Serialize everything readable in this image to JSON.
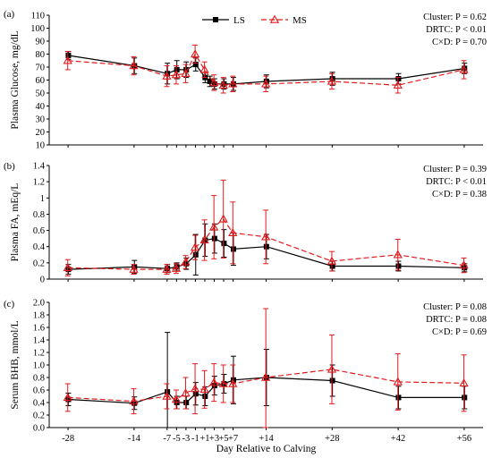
{
  "chart_data": {
    "type": "line",
    "x": [
      -28,
      -14,
      -7,
      -5,
      -3,
      -1,
      1,
      3,
      5,
      7,
      14,
      28,
      42,
      56
    ],
    "xtick_positions": [
      -28,
      -14,
      -7,
      -5,
      -3,
      -1,
      1,
      3,
      5,
      7,
      14,
      28,
      42,
      56
    ],
    "xlim": [
      -32,
      60
    ],
    "xlabel": "Day Relative to Calving",
    "colors": {
      "LS": "#000000",
      "MS": "#e31a1c"
    },
    "legend": [
      {
        "name": "LS",
        "marker": "square",
        "line": "solid"
      },
      {
        "name": "MS",
        "marker": "triangle",
        "line": "dashed"
      }
    ],
    "panels": [
      {
        "label": "(a)",
        "ylabel": "Plasma Glucose, mg/dL",
        "ylim": [
          10,
          110
        ],
        "yticks": [
          10,
          20,
          30,
          40,
          50,
          60,
          70,
          80,
          90,
          100,
          110
        ],
        "ytick_labels": [
          "10",
          "20",
          "30",
          "40",
          "50",
          "60",
          "70",
          "80",
          "90",
          "100",
          "110"
        ],
        "stats": [
          "Cluster: P = 0.62",
          "DRTC: P < 0.01",
          "C×D: P = 0.70"
        ],
        "series": [
          {
            "name": "LS",
            "x": [
              -28,
              -14,
              -7,
              -5,
              -3,
              -1,
              1,
              2,
              3,
              5,
              7,
              14,
              28,
              42,
              56
            ],
            "values": [
              79,
              71,
              65,
              68,
              68,
              72,
              62,
              59,
              57,
              57,
              57,
              59,
              61,
              61,
              69
            ],
            "errors": [
              3,
              6,
              8,
              7,
              6,
              5,
              4,
              4,
              4,
              4,
              5,
              5,
              5,
              4,
              4
            ]
          },
          {
            "name": "MS",
            "x": [
              -28,
              -14,
              -7,
              -5,
              -3,
              -1,
              1,
              3,
              5,
              7,
              14,
              28,
              42,
              56
            ],
            "values": [
              75,
              71,
              63,
              64,
              65,
              80,
              68,
              58,
              56,
              57,
              57,
              59,
              56,
              68
            ],
            "errors": [
              7,
              7,
              8,
              7,
              7,
              7,
              6,
              6,
              6,
              6,
              6,
              6,
              6,
              7
            ]
          }
        ]
      },
      {
        "label": "(b)",
        "ylabel": "Plasma FA, mEq/L",
        "ylim": [
          0,
          1.4
        ],
        "yticks": [
          0,
          0.2,
          0.4,
          0.6,
          0.8,
          1.0,
          1.2,
          1.4
        ],
        "ytick_labels": [
          "0",
          "0.2",
          "0.4",
          "0.6",
          "0.8",
          "1",
          "1.2",
          "1.4"
        ],
        "stats": [
          "Cluster: P = 0.39",
          "DRTC: P < 0.01",
          "C×D: P = 0.38"
        ],
        "series": [
          {
            "name": "LS",
            "x": [
              -28,
              -14,
              -7,
              -5,
              -3,
              -1,
              1,
              3,
              5,
              7,
              14,
              28,
              42,
              56
            ],
            "values": [
              0.12,
              0.15,
              0.13,
              0.15,
              0.19,
              0.3,
              0.48,
              0.5,
              0.44,
              0.37,
              0.4,
              0.16,
              0.16,
              0.14
            ],
            "errors": [
              0.06,
              0.08,
              0.05,
              0.05,
              0.07,
              0.25,
              0.2,
              0.18,
              0.17,
              0.2,
              0.15,
              0.06,
              0.06,
              0.05
            ]
          },
          {
            "name": "MS",
            "x": [
              -28,
              -14,
              -7,
              -5,
              -3,
              -1,
              1,
              3,
              5,
              7,
              14,
              28,
              42,
              56
            ],
            "values": [
              0.14,
              0.12,
              0.12,
              0.13,
              0.21,
              0.39,
              0.48,
              0.64,
              0.74,
              0.57,
              0.52,
              0.22,
              0.3,
              0.17
            ],
            "errors": [
              0.1,
              0.06,
              0.06,
              0.06,
              0.08,
              0.15,
              0.25,
              0.39,
              0.48,
              0.38,
              0.33,
              0.12,
              0.19,
              0.09
            ]
          }
        ]
      },
      {
        "label": "(c)",
        "ylabel": "Serum BHB, mmol/L",
        "ylim": [
          0,
          2.0
        ],
        "yticks": [
          0,
          0.2,
          0.4,
          0.6,
          0.8,
          1.0,
          1.2,
          1.4,
          1.6,
          1.8,
          2.0
        ],
        "ytick_labels": [
          "0.0",
          "0.2",
          "0.4",
          "0.6",
          "0.8",
          "1.0",
          "1.2",
          "1.4",
          "1.6",
          "1.8",
          "2.0"
        ],
        "stats": [
          "Cluster: P = 0.08",
          "DRTC: P = 0.08",
          "C×D: P = 0.69"
        ],
        "series": [
          {
            "name": "LS",
            "x": [
              -28,
              -14,
              -7,
              -5,
              -3,
              -1,
              1,
              3,
              5,
              7,
              14,
              28,
              42,
              56
            ],
            "values": [
              0.45,
              0.39,
              0.57,
              0.4,
              0.4,
              0.54,
              0.5,
              0.67,
              0.7,
              0.76,
              0.8,
              0.75,
              0.48,
              0.48
            ],
            "errors": [
              0.1,
              0.1,
              0.95,
              0.1,
              0.1,
              0.18,
              0.15,
              0.15,
              0.15,
              0.38,
              0.45,
              0.25,
              0.18,
              0.18
            ]
          },
          {
            "name": "MS",
            "x": [
              -28,
              -14,
              -7,
              -5,
              -3,
              -1,
              1,
              3,
              5,
              7,
              14,
              28,
              42,
              56
            ],
            "values": [
              0.48,
              0.42,
              0.5,
              0.45,
              0.55,
              0.62,
              0.61,
              0.72,
              0.7,
              0.7,
              0.8,
              0.93,
              0.73,
              0.71
            ],
            "errors": [
              0.22,
              0.2,
              0.2,
              0.15,
              0.25,
              0.4,
              0.3,
              0.3,
              0.3,
              0.3,
              1.1,
              0.55,
              0.45,
              0.45
            ]
          }
        ]
      }
    ]
  }
}
